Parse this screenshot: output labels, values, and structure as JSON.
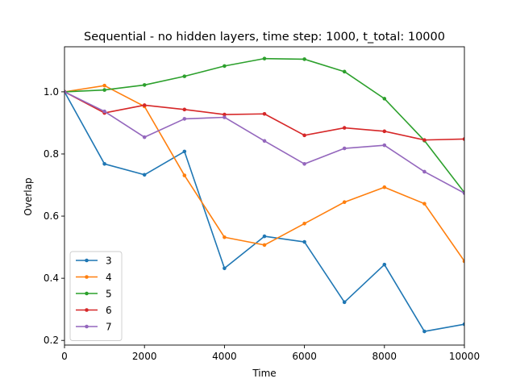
{
  "chart_data": {
    "type": "line",
    "title": "Sequential - no hidden layers, time step: 1000, t_total: 10000",
    "xlabel": "Time",
    "ylabel": "Overlap",
    "xlim": [
      0,
      10000
    ],
    "ylim": [
      0.185,
      1.145
    ],
    "xticks": [
      0,
      2000,
      4000,
      6000,
      8000,
      10000
    ],
    "yticks": [
      0.2,
      0.4,
      0.6,
      0.8,
      1.0
    ],
    "ytick_labels": [
      "0.2",
      "0.4",
      "0.6",
      "0.8",
      "1.0"
    ],
    "grid": false,
    "legend_position": "lower-left",
    "x": [
      0,
      1000,
      2000,
      3000,
      4000,
      5000,
      6000,
      7000,
      8000,
      9000,
      10000
    ],
    "series": [
      {
        "name": "3",
        "color": "#1f77b4",
        "values": [
          1.0,
          0.768,
          0.733,
          0.808,
          0.432,
          0.535,
          0.517,
          0.323,
          0.444,
          0.229,
          0.252
        ]
      },
      {
        "name": "4",
        "color": "#ff7f0e",
        "values": [
          1.0,
          1.02,
          0.953,
          0.731,
          0.532,
          0.507,
          0.576,
          0.645,
          0.693,
          0.64,
          0.455
        ]
      },
      {
        "name": "5",
        "color": "#2ca02c",
        "values": [
          1.0,
          1.006,
          1.022,
          1.05,
          1.083,
          1.107,
          1.105,
          1.065,
          0.978,
          0.843,
          0.676
        ]
      },
      {
        "name": "6",
        "color": "#d62728",
        "values": [
          1.0,
          0.932,
          0.957,
          0.943,
          0.927,
          0.929,
          0.86,
          0.884,
          0.873,
          0.845,
          0.848
        ]
      },
      {
        "name": "7",
        "color": "#9467bd",
        "values": [
          1.0,
          0.937,
          0.854,
          0.913,
          0.918,
          0.842,
          0.768,
          0.818,
          0.828,
          0.743,
          0.674
        ]
      }
    ]
  }
}
